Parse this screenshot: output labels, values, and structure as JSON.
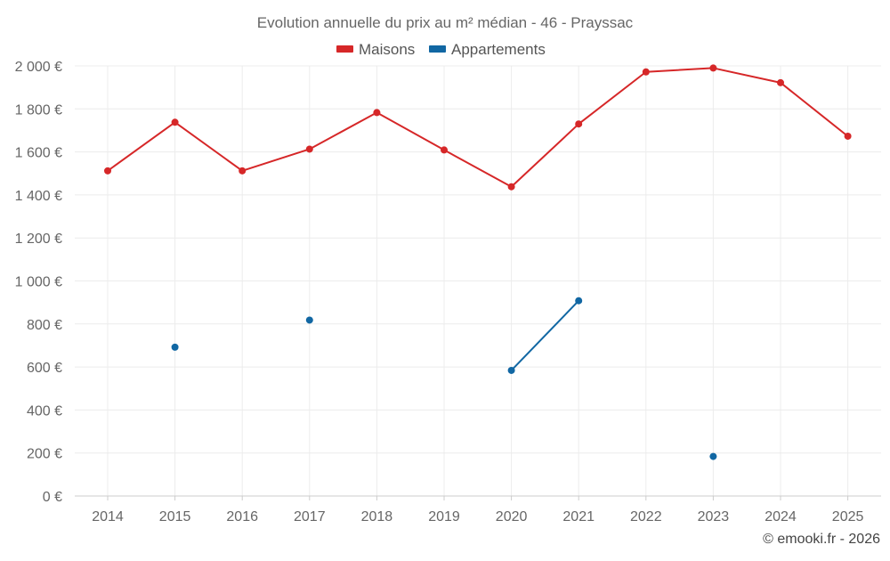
{
  "chart_data": {
    "type": "line",
    "title": "Evolution annuelle du prix au m² médian - 46 - Prayssac",
    "xlabel": "",
    "ylabel": "",
    "categories": [
      "2014",
      "2015",
      "2016",
      "2017",
      "2018",
      "2019",
      "2020",
      "2021",
      "2022",
      "2023",
      "2024",
      "2025"
    ],
    "ylim": [
      0,
      2000
    ],
    "yticks": [
      0,
      200,
      400,
      600,
      800,
      1000,
      1200,
      1400,
      1600,
      1800,
      2000
    ],
    "ytick_labels": [
      "0 €",
      "200 €",
      "400 €",
      "600 €",
      "800 €",
      "1 000 €",
      "1 200 €",
      "1 400 €",
      "1 600 €",
      "1 800 €",
      "2 000 €"
    ],
    "grid": true,
    "legend_position": "top-center",
    "series": [
      {
        "name": "Maisons",
        "color": "#d62728",
        "values": [
          1512,
          1738,
          1512,
          1613,
          1783,
          1609,
          1438,
          1730,
          1972,
          1990,
          1922,
          1673
        ]
      },
      {
        "name": "Appartements",
        "color": "#1167a3",
        "values": [
          null,
          692,
          null,
          818,
          null,
          null,
          584,
          908,
          null,
          184,
          null,
          null
        ]
      }
    ]
  },
  "credit": "© emooki.fr - 2026"
}
